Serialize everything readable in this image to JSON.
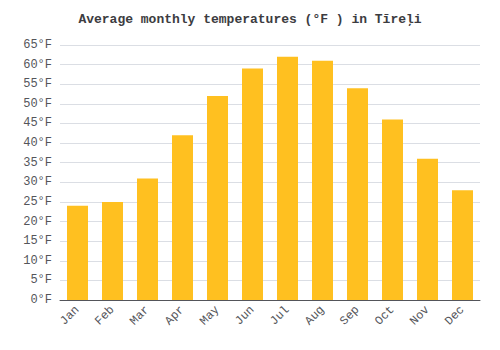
{
  "chart_data": {
    "type": "bar",
    "title": "Average monthly temperatures (°F ) in Tīreļi",
    "categories": [
      "Jan",
      "Feb",
      "Mar",
      "Apr",
      "May",
      "Jun",
      "Jul",
      "Aug",
      "Sep",
      "Oct",
      "Nov",
      "Dec"
    ],
    "values": [
      24,
      25,
      31,
      42,
      52,
      59,
      62,
      61,
      54,
      46,
      36,
      28
    ],
    "color": "#FFC020",
    "ylim": [
      0,
      65
    ],
    "yticks": [
      {
        "value": 0,
        "label": "0°F"
      },
      {
        "value": 5,
        "label": "5°F"
      },
      {
        "value": 10,
        "label": "10°F"
      },
      {
        "value": 15,
        "label": "15°F"
      },
      {
        "value": 20,
        "label": "20°F"
      },
      {
        "value": 25,
        "label": "25°F"
      },
      {
        "value": 30,
        "label": "30°F"
      },
      {
        "value": 35,
        "label": "35°F"
      },
      {
        "value": 40,
        "label": "40°F"
      },
      {
        "value": 45,
        "label": "45°F"
      },
      {
        "value": 50,
        "label": "50°F"
      },
      {
        "value": 55,
        "label": "55°F"
      },
      {
        "value": 60,
        "label": "60°F"
      },
      {
        "value": 65,
        "label": "65°F"
      }
    ],
    "grid": true
  }
}
